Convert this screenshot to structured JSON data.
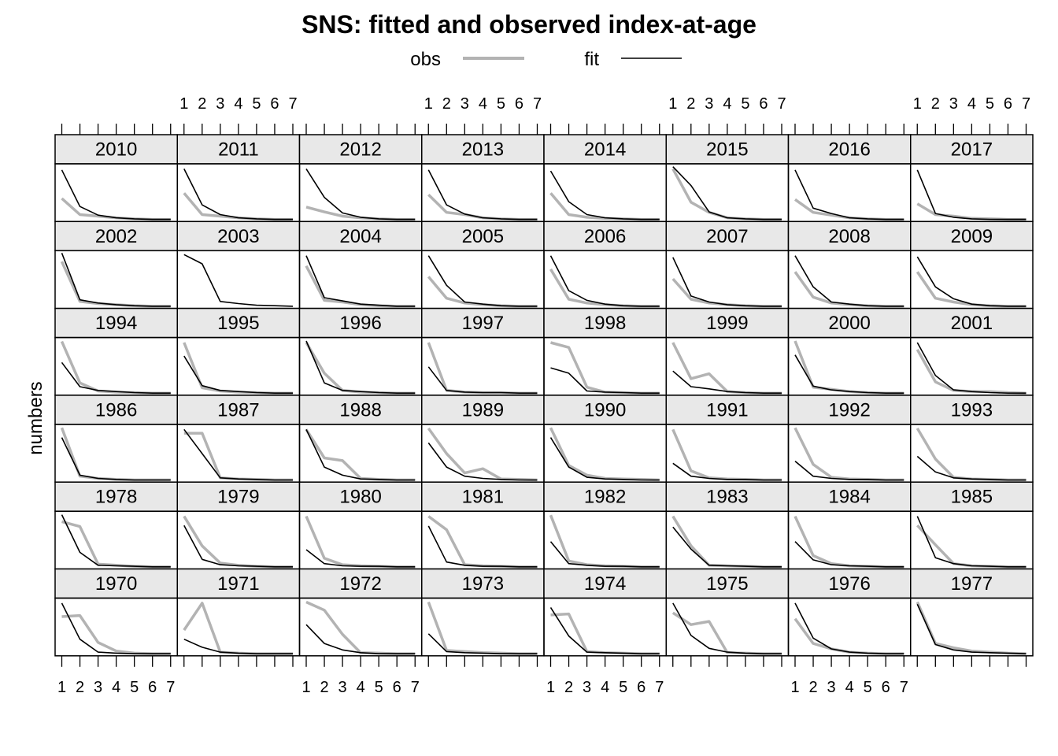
{
  "chart_data": {
    "type": "line",
    "title": "SNS: fitted and observed index-at-age",
    "ylabel": "numbers",
    "xlabel": "",
    "x": [
      1,
      2,
      3,
      4,
      5,
      6,
      7
    ],
    "xlim": [
      1,
      7
    ],
    "ylim": [
      0,
      1
    ],
    "legend": {
      "placement": "top",
      "entries": [
        {
          "name": "obs",
          "color": "#b3b3b3"
        },
        {
          "name": "fit",
          "color": "#000000"
        }
      ]
    },
    "colors": {
      "obs": "#b3b3b3",
      "fit": "#000000",
      "strip": "#e8e8e8"
    },
    "layout": {
      "columns": 8,
      "rows": 6
    },
    "panels": [
      {
        "year": "2010",
        "obs": [
          0.4,
          0.1,
          0.07,
          0.04,
          0.02,
          0.01,
          0.01
        ],
        "fit": [
          0.93,
          0.25,
          0.09,
          0.04,
          0.02,
          0.01,
          0.01
        ]
      },
      {
        "year": "2011",
        "obs": [
          0.5,
          0.1,
          0.07,
          0.04,
          0.02,
          0.01,
          0.01
        ],
        "fit": [
          0.95,
          0.28,
          0.1,
          0.04,
          0.02,
          0.01,
          0.01
        ]
      },
      {
        "year": "2012",
        "obs": [
          0.24,
          0.15,
          0.07,
          0.04,
          0.02,
          0.01,
          0.01
        ],
        "fit": [
          0.95,
          0.42,
          0.13,
          0.05,
          0.02,
          0.01,
          0.01
        ]
      },
      {
        "year": "2013",
        "obs": [
          0.47,
          0.14,
          0.1,
          0.04,
          0.02,
          0.01,
          0.01
        ],
        "fit": [
          0.93,
          0.28,
          0.11,
          0.04,
          0.02,
          0.01,
          0.01
        ]
      },
      {
        "year": "2014",
        "obs": [
          0.5,
          0.1,
          0.05,
          0.03,
          0.02,
          0.01,
          0.01
        ],
        "fit": [
          0.91,
          0.34,
          0.1,
          0.04,
          0.02,
          0.01,
          0.01
        ]
      },
      {
        "year": "2015",
        "obs": [
          0.95,
          0.33,
          0.14,
          0.04,
          0.02,
          0.01,
          0.01
        ],
        "fit": [
          0.99,
          0.64,
          0.15,
          0.04,
          0.02,
          0.01,
          0.01
        ]
      },
      {
        "year": "2016",
        "obs": [
          0.38,
          0.14,
          0.09,
          0.04,
          0.02,
          0.01,
          0.01
        ],
        "fit": [
          0.93,
          0.22,
          0.12,
          0.04,
          0.02,
          0.01,
          0.01
        ]
      },
      {
        "year": "2017",
        "obs": [
          0.3,
          0.1,
          0.07,
          0.03,
          0.02,
          0.01,
          0.01
        ],
        "fit": [
          0.93,
          0.12,
          0.05,
          0.02,
          0.01,
          0.01,
          0.01
        ]
      },
      {
        "year": "2002",
        "obs": [
          0.84,
          0.1,
          0.06,
          0.04,
          0.02,
          0.01,
          0.01
        ],
        "fit": [
          1.0,
          0.13,
          0.07,
          0.04,
          0.02,
          0.01,
          0.01
        ]
      },
      {
        "year": "2003",
        "obs": [
          null,
          null,
          null,
          null,
          null,
          null,
          null
        ],
        "fit": [
          0.97,
          0.8,
          0.1,
          0.06,
          0.03,
          0.02,
          0.01
        ]
      },
      {
        "year": "2004",
        "obs": [
          0.76,
          0.12,
          0.09,
          0.04,
          0.02,
          0.01,
          0.01
        ],
        "fit": [
          0.95,
          0.17,
          0.11,
          0.05,
          0.03,
          0.01,
          0.01
        ]
      },
      {
        "year": "2005",
        "obs": [
          0.56,
          0.16,
          0.07,
          0.04,
          0.02,
          0.01,
          0.01
        ],
        "fit": [
          0.95,
          0.4,
          0.09,
          0.05,
          0.02,
          0.01,
          0.01
        ]
      },
      {
        "year": "2006",
        "obs": [
          0.7,
          0.14,
          0.07,
          0.04,
          0.02,
          0.01,
          0.01
        ],
        "fit": [
          0.95,
          0.3,
          0.12,
          0.05,
          0.02,
          0.01,
          0.01
        ]
      },
      {
        "year": "2007",
        "obs": [
          0.52,
          0.14,
          0.07,
          0.04,
          0.02,
          0.01,
          0.01
        ],
        "fit": [
          0.92,
          0.2,
          0.09,
          0.04,
          0.02,
          0.01,
          0.01
        ]
      },
      {
        "year": "2008",
        "obs": [
          0.65,
          0.18,
          0.07,
          0.04,
          0.02,
          0.01,
          0.01
        ],
        "fit": [
          0.95,
          0.37,
          0.09,
          0.05,
          0.02,
          0.01,
          0.01
        ]
      },
      {
        "year": "2009",
        "obs": [
          0.65,
          0.16,
          0.09,
          0.04,
          0.02,
          0.01,
          0.01
        ],
        "fit": [
          0.93,
          0.37,
          0.15,
          0.05,
          0.02,
          0.01,
          0.01
        ]
      },
      {
        "year": "1994",
        "obs": [
          0.97,
          0.2,
          0.05,
          0.03,
          0.02,
          0.01,
          0.01
        ],
        "fit": [
          0.58,
          0.13,
          0.06,
          0.04,
          0.02,
          0.01,
          0.01
        ]
      },
      {
        "year": "1995",
        "obs": [
          0.95,
          0.11,
          0.05,
          0.03,
          0.02,
          0.01,
          0.01
        ],
        "fit": [
          0.7,
          0.15,
          0.06,
          0.04,
          0.02,
          0.01,
          0.01
        ]
      },
      {
        "year": "1996",
        "obs": [
          0.95,
          0.38,
          0.06,
          0.03,
          0.02,
          0.01,
          0.01
        ],
        "fit": [
          0.98,
          0.2,
          0.06,
          0.04,
          0.02,
          0.01,
          0.01
        ]
      },
      {
        "year": "1997",
        "obs": [
          0.95,
          0.06,
          0.03,
          0.02,
          0.02,
          0.01,
          0.01
        ],
        "fit": [
          0.5,
          0.06,
          0.03,
          0.02,
          0.02,
          0.01,
          0.01
        ]
      },
      {
        "year": "1998",
        "obs": [
          0.95,
          0.86,
          0.12,
          0.03,
          0.02,
          0.01,
          0.01
        ],
        "fit": [
          0.48,
          0.38,
          0.05,
          0.03,
          0.02,
          0.01,
          0.01
        ]
      },
      {
        "year": "1999",
        "obs": [
          0.95,
          0.28,
          0.37,
          0.04,
          0.02,
          0.01,
          0.01
        ],
        "fit": [
          0.42,
          0.13,
          0.09,
          0.04,
          0.02,
          0.01,
          0.01
        ]
      },
      {
        "year": "2000",
        "obs": [
          0.98,
          0.12,
          0.08,
          0.04,
          0.02,
          0.01,
          0.01
        ],
        "fit": [
          0.72,
          0.14,
          0.07,
          0.04,
          0.02,
          0.01,
          0.01
        ]
      },
      {
        "year": "2001",
        "obs": [
          0.82,
          0.22,
          0.06,
          0.04,
          0.04,
          0.02,
          0.01
        ],
        "fit": [
          0.95,
          0.34,
          0.07,
          0.04,
          0.02,
          0.01,
          0.01
        ]
      },
      {
        "year": "1986",
        "obs": [
          0.98,
          0.08,
          0.04,
          0.02,
          0.01,
          0.01,
          0.01
        ],
        "fit": [
          0.8,
          0.1,
          0.04,
          0.02,
          0.01,
          0.01,
          0.01
        ]
      },
      {
        "year": "1987",
        "obs": [
          0.88,
          0.88,
          0.05,
          0.03,
          0.02,
          0.01,
          0.01
        ],
        "fit": [
          0.95,
          0.5,
          0.05,
          0.03,
          0.02,
          0.01,
          0.01
        ]
      },
      {
        "year": "1988",
        "obs": [
          0.95,
          0.42,
          0.37,
          0.04,
          0.02,
          0.01,
          0.01
        ],
        "fit": [
          0.95,
          0.25,
          0.1,
          0.03,
          0.02,
          0.01,
          0.01
        ]
      },
      {
        "year": "1989",
        "obs": [
          0.97,
          0.5,
          0.14,
          0.22,
          0.03,
          0.02,
          0.01
        ],
        "fit": [
          0.7,
          0.25,
          0.08,
          0.04,
          0.02,
          0.01,
          0.01
        ]
      },
      {
        "year": "1990",
        "obs": [
          0.98,
          0.28,
          0.1,
          0.04,
          0.03,
          0.02,
          0.01
        ],
        "fit": [
          0.8,
          0.25,
          0.06,
          0.03,
          0.02,
          0.01,
          0.01
        ]
      },
      {
        "year": "1991",
        "obs": [
          0.95,
          0.18,
          0.05,
          0.03,
          0.02,
          0.01,
          0.01
        ],
        "fit": [
          0.32,
          0.08,
          0.04,
          0.02,
          0.02,
          0.01,
          0.01
        ]
      },
      {
        "year": "1992",
        "obs": [
          0.98,
          0.3,
          0.06,
          0.03,
          0.02,
          0.01,
          0.01
        ],
        "fit": [
          0.36,
          0.08,
          0.04,
          0.02,
          0.02,
          0.01,
          0.01
        ]
      },
      {
        "year": "1993",
        "obs": [
          0.97,
          0.4,
          0.06,
          0.03,
          0.02,
          0.01,
          0.01
        ],
        "fit": [
          0.45,
          0.16,
          0.05,
          0.03,
          0.02,
          0.01,
          0.01
        ]
      },
      {
        "year": "1978",
        "obs": [
          0.85,
          0.76,
          0.06,
          0.04,
          0.02,
          0.01,
          0.01
        ],
        "fit": [
          0.98,
          0.28,
          0.04,
          0.03,
          0.02,
          0.01,
          0.01
        ]
      },
      {
        "year": "1979",
        "obs": [
          0.95,
          0.4,
          0.08,
          0.04,
          0.02,
          0.01,
          0.01
        ],
        "fit": [
          0.78,
          0.15,
          0.05,
          0.03,
          0.02,
          0.01,
          0.01
        ]
      },
      {
        "year": "1980",
        "obs": [
          0.95,
          0.17,
          0.05,
          0.03,
          0.02,
          0.01,
          0.01
        ],
        "fit": [
          0.33,
          0.07,
          0.03,
          0.02,
          0.02,
          0.01,
          0.01
        ]
      },
      {
        "year": "1981",
        "obs": [
          0.95,
          0.7,
          0.05,
          0.03,
          0.02,
          0.01,
          0.01
        ],
        "fit": [
          0.77,
          0.1,
          0.04,
          0.02,
          0.02,
          0.01,
          0.01
        ]
      },
      {
        "year": "1982",
        "obs": [
          0.97,
          0.12,
          0.05,
          0.03,
          0.02,
          0.01,
          0.01
        ],
        "fit": [
          0.48,
          0.07,
          0.04,
          0.02,
          0.02,
          0.01,
          0.01
        ]
      },
      {
        "year": "1983",
        "obs": [
          0.95,
          0.4,
          0.04,
          0.03,
          0.02,
          0.01,
          0.01
        ],
        "fit": [
          0.75,
          0.34,
          0.04,
          0.03,
          0.02,
          0.01,
          0.01
        ]
      },
      {
        "year": "1984",
        "obs": [
          0.95,
          0.22,
          0.07,
          0.03,
          0.02,
          0.01,
          0.01
        ],
        "fit": [
          0.48,
          0.14,
          0.05,
          0.03,
          0.02,
          0.01,
          0.01
        ]
      },
      {
        "year": "1985",
        "obs": [
          0.78,
          0.42,
          0.07,
          0.03,
          0.02,
          0.01,
          0.01
        ],
        "fit": [
          0.95,
          0.18,
          0.07,
          0.03,
          0.02,
          0.01,
          0.01
        ]
      },
      {
        "year": "1970",
        "obs": [
          0.7,
          0.72,
          0.22,
          0.06,
          0.02,
          0.01,
          0.01
        ],
        "fit": [
          0.95,
          0.28,
          0.04,
          0.02,
          0.01,
          0.01,
          0.01
        ]
      },
      {
        "year": "1971",
        "obs": [
          0.45,
          0.95,
          0.04,
          0.02,
          0.01,
          0.01,
          0.01
        ],
        "fit": [
          0.28,
          0.13,
          0.04,
          0.02,
          0.01,
          0.01,
          0.01
        ]
      },
      {
        "year": "1972",
        "obs": [
          0.97,
          0.82,
          0.37,
          0.03,
          0.02,
          0.01,
          0.01
        ],
        "fit": [
          0.55,
          0.2,
          0.08,
          0.03,
          0.01,
          0.01,
          0.01
        ]
      },
      {
        "year": "1973",
        "obs": [
          0.97,
          0.07,
          0.05,
          0.03,
          0.02,
          0.01,
          0.01
        ],
        "fit": [
          0.38,
          0.05,
          0.03,
          0.02,
          0.01,
          0.01,
          0.01
        ]
      },
      {
        "year": "1974",
        "obs": [
          0.73,
          0.75,
          0.05,
          0.03,
          0.02,
          0.01,
          0.01
        ],
        "fit": [
          0.87,
          0.34,
          0.04,
          0.03,
          0.02,
          0.01,
          0.01
        ]
      },
      {
        "year": "1975",
        "obs": [
          0.77,
          0.55,
          0.61,
          0.03,
          0.02,
          0.01,
          0.01
        ],
        "fit": [
          0.95,
          0.35,
          0.11,
          0.04,
          0.02,
          0.01,
          0.01
        ]
      },
      {
        "year": "1976",
        "obs": [
          0.66,
          0.2,
          0.1,
          0.04,
          0.02,
          0.01,
          0.01
        ],
        "fit": [
          0.95,
          0.3,
          0.1,
          0.04,
          0.02,
          0.01,
          0.01
        ]
      },
      {
        "year": "1977",
        "obs": [
          0.97,
          0.2,
          0.12,
          0.06,
          0.04,
          0.02,
          0.01
        ],
        "fit": [
          0.93,
          0.18,
          0.08,
          0.04,
          0.03,
          0.02,
          0.01
        ]
      }
    ]
  }
}
